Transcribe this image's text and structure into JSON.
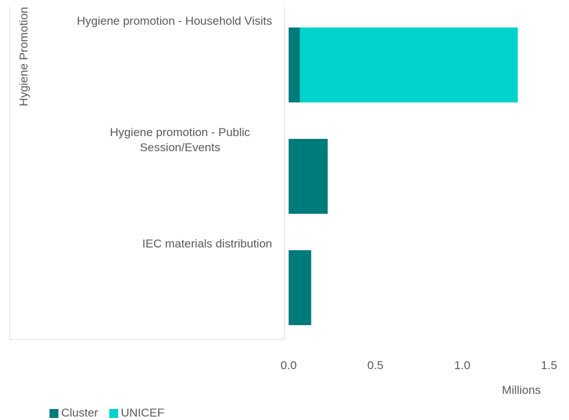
{
  "chart_data": {
    "type": "bar",
    "orientation": "horizontal",
    "stacked": true,
    "group_label": "Hygiene Promotion",
    "categories": [
      "Hygiene promotion - Household Visits",
      "Hygiene promotion - Public Session/Events",
      "IEC materials distribution"
    ],
    "series": [
      {
        "name": "Cluster",
        "color": "#007B7B",
        "values": [
          0.065,
          0.225,
          0.13
        ]
      },
      {
        "name": "UNICEF",
        "color": "#00D3CC",
        "values": [
          1.255,
          0,
          0
        ]
      }
    ],
    "xlabel": "",
    "x_unit_label": "Millions",
    "xlim": [
      0,
      1.5
    ],
    "x_ticks": [
      "0.0",
      "0.5",
      "1.0",
      "1.5"
    ],
    "grid": false,
    "legend_position": "bottom-left"
  }
}
